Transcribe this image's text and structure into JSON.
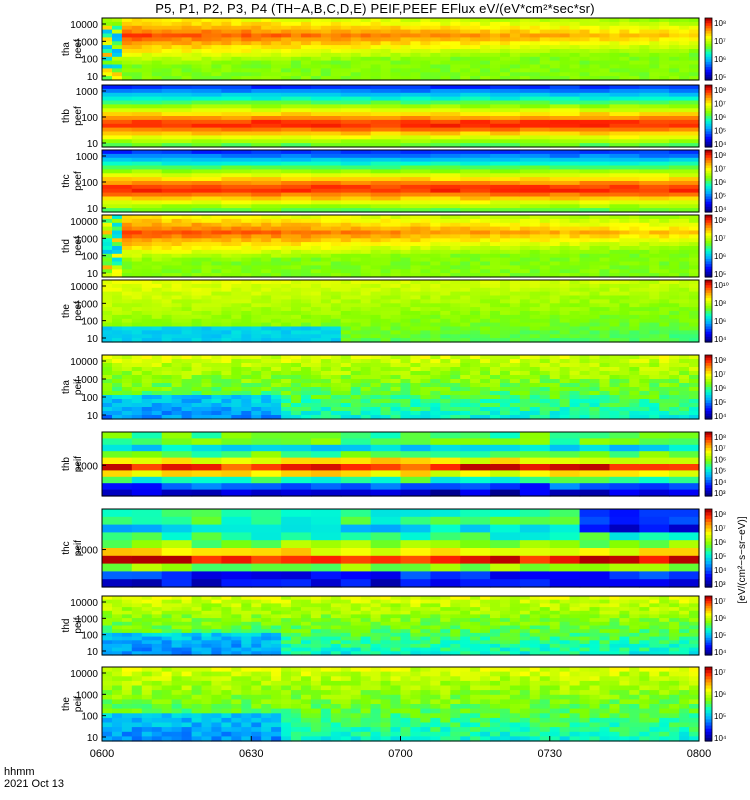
{
  "title": "P5, P1, P2, P3, P4 (TH−A,B,C,D,E) PEIF,PEEF EFlux eV/(eV*cm²*sec*sr)",
  "footer": {
    "time_label": "hhmm",
    "date_label": "2021 Oct 13"
  },
  "colorbar_label": "[eV/(cm²−s−sr−eV)]",
  "colors": {
    "frame": "#000000",
    "background": "#ffffff"
  },
  "chart_data": {
    "type": "heatmap",
    "x": {
      "range": [
        "0600",
        "0800"
      ],
      "ticks": [
        "0600",
        "0630",
        "0700",
        "0730",
        "0800"
      ],
      "label": "hhmm"
    },
    "y_scale": "log",
    "panels": [
      {
        "name": "tha_peef",
        "label": [
          "tha",
          "peef"
        ],
        "y_ticks": [
          "10",
          "100",
          "1000",
          "10000"
        ],
        "cbar_ticks": [
          "10⁵",
          "10⁶",
          "10⁷",
          "10⁸"
        ],
        "pattern": "ion-dense"
      },
      {
        "name": "thb_peef",
        "label": [
          "thb",
          "peef"
        ],
        "y_ticks": [
          "10",
          "100",
          "1000"
        ],
        "cbar_ticks": [
          "10⁴",
          "10⁵",
          "10⁶",
          "10⁷",
          "10⁸"
        ],
        "pattern": "banded-red"
      },
      {
        "name": "thc_peef",
        "label": [
          "thc",
          "peef"
        ],
        "y_ticks": [
          "10",
          "100",
          "1000"
        ],
        "cbar_ticks": [
          "10⁴",
          "10⁵",
          "10⁶",
          "10⁷",
          "10⁸"
        ],
        "pattern": "banded-red"
      },
      {
        "name": "thd_peef",
        "label": [
          "thd",
          "peef"
        ],
        "y_ticks": [
          "10",
          "100",
          "1000",
          "10000"
        ],
        "cbar_ticks": [
          "10⁵",
          "10⁶",
          "10⁷",
          "10⁸"
        ],
        "pattern": "ion-dense"
      },
      {
        "name": "the_peef",
        "label": [
          "the",
          "peef"
        ],
        "y_ticks": [
          "10",
          "100",
          "1000",
          "10000"
        ],
        "cbar_ticks": [
          "10⁴",
          "10⁶",
          "10⁸",
          "10¹⁰"
        ],
        "pattern": "ion-light"
      },
      {
        "name": "tha_peif",
        "label": [
          "tha",
          "peif"
        ],
        "y_ticks": [
          "10",
          "100",
          "1000",
          "10000"
        ],
        "cbar_ticks": [
          "10⁴",
          "10⁵",
          "10⁶",
          "10⁷",
          "10⁸"
        ],
        "pattern": "cool"
      },
      {
        "name": "thb_peif",
        "label": [
          "thb",
          "peif"
        ],
        "y_ticks": [
          "1000"
        ],
        "cbar_ticks": [
          "10³",
          "10⁴",
          "10⁵",
          "10⁶",
          "10⁷",
          "10⁸"
        ],
        "pattern": "blocky"
      },
      {
        "name": "thc_peif",
        "label": [
          "thc",
          "peif"
        ],
        "y_ticks": [
          "1000"
        ],
        "cbar_ticks": [
          "10³",
          "10⁴",
          "10⁵",
          "10⁶",
          "10⁷",
          "10⁸"
        ],
        "pattern": "blocky-c"
      },
      {
        "name": "thd_peif",
        "label": [
          "thd",
          "peif"
        ],
        "y_ticks": [
          "10",
          "100",
          "1000",
          "10000"
        ],
        "cbar_ticks": [
          "10⁴",
          "10⁵",
          "10⁶",
          "10⁷"
        ],
        "pattern": "cool"
      },
      {
        "name": "the_peif",
        "label": [
          "the",
          "peif"
        ],
        "y_ticks": [
          "10",
          "100",
          "1000",
          "10000"
        ],
        "cbar_ticks": [
          "10⁴",
          "10⁵",
          "10⁶",
          "10⁷"
        ],
        "pattern": "cool"
      }
    ]
  }
}
